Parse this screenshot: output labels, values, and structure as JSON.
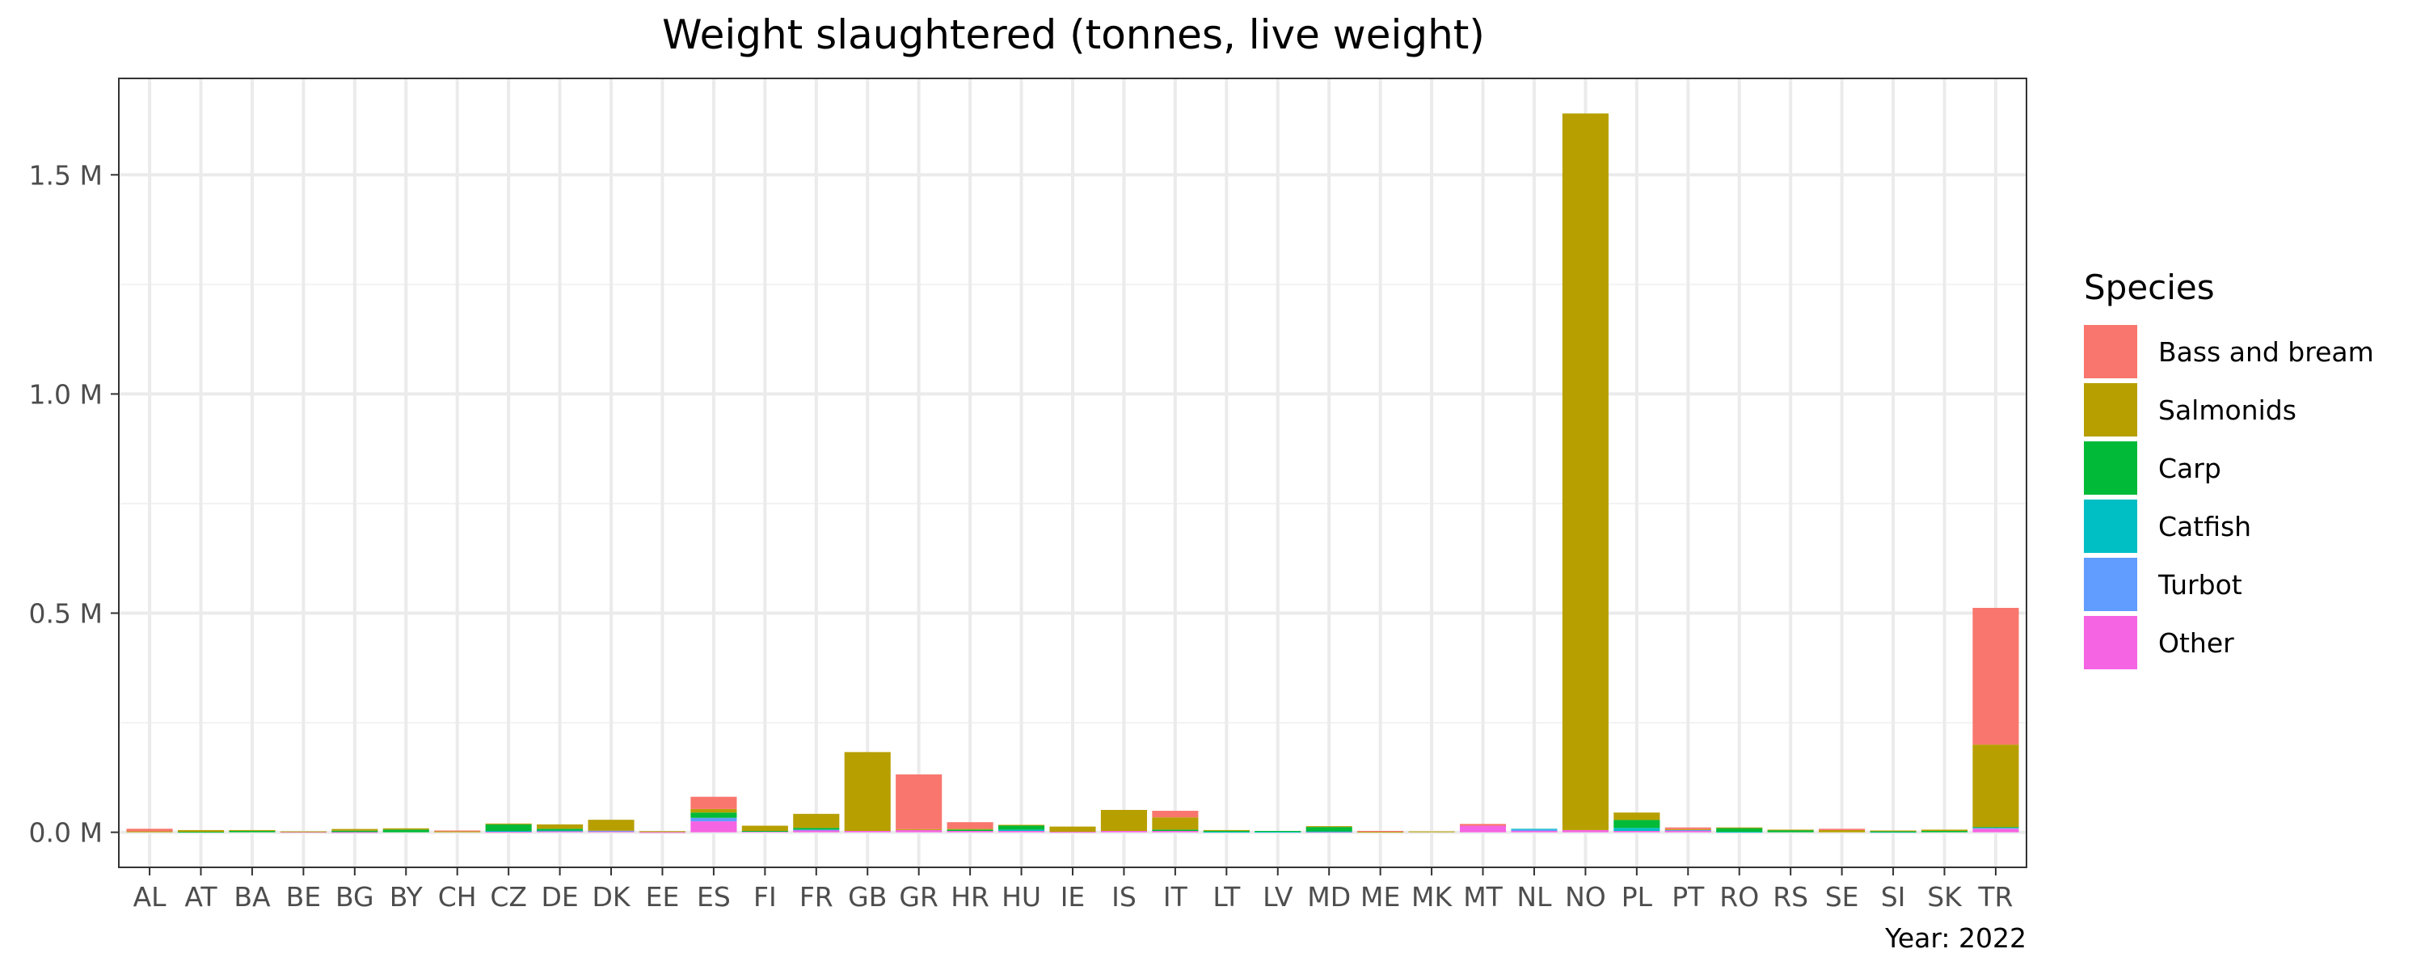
{
  "chart_data": {
    "type": "bar",
    "stacked": true,
    "title": "Weight slaughtered (tonnes, live weight)",
    "caption": "Year: 2022",
    "xlabel": "",
    "ylabel": "",
    "ylim": [
      -80000,
      1720000
    ],
    "y_ticks": [
      {
        "value": 0,
        "label": "0.0 M"
      },
      {
        "value": 500000,
        "label": "0.5 M"
      },
      {
        "value": 1000000,
        "label": "1.0 M"
      },
      {
        "value": 1500000,
        "label": "1.5 M"
      }
    ],
    "grid": true,
    "legend": {
      "title": "Species",
      "position": "right"
    },
    "categories": [
      "AL",
      "AT",
      "BA",
      "BE",
      "BG",
      "BY",
      "CH",
      "CZ",
      "DE",
      "DK",
      "EE",
      "ES",
      "FI",
      "FR",
      "GB",
      "GR",
      "HR",
      "HU",
      "IE",
      "IS",
      "IT",
      "LT",
      "LV",
      "MD",
      "ME",
      "MK",
      "MT",
      "NL",
      "NO",
      "PL",
      "PT",
      "RO",
      "RS",
      "SE",
      "SI",
      "SK",
      "TR"
    ],
    "series": [
      {
        "name": "Other",
        "color": "#F564E3",
        "values": [
          0,
          0,
          0,
          1000,
          500,
          0,
          0,
          1000,
          3000,
          3000,
          500,
          25000,
          2000,
          5000,
          3000,
          5000,
          3000,
          3000,
          1000,
          3000,
          3000,
          0,
          0,
          1000,
          0,
          0,
          15000,
          3000,
          5000,
          3000,
          3000,
          0,
          0,
          0,
          0,
          0,
          8000
        ]
      },
      {
        "name": "Turbot",
        "color": "#619CFF",
        "values": [
          0,
          0,
          0,
          0,
          0,
          0,
          0,
          0,
          0,
          500,
          0,
          8000,
          0,
          1000,
          0,
          0,
          0,
          0,
          0,
          0,
          0,
          0,
          0,
          0,
          0,
          0,
          0,
          3000,
          0,
          0,
          2000,
          0,
          0,
          0,
          0,
          0,
          2000
        ]
      },
      {
        "name": "Catfish",
        "color": "#00BFC4",
        "values": [
          0,
          0,
          0,
          0,
          0,
          0,
          0,
          2000,
          1000,
          0,
          0,
          0,
          0,
          0,
          0,
          0,
          0,
          3000,
          0,
          0,
          0,
          1000,
          1000,
          1000,
          0,
          0,
          0,
          2000,
          0,
          7000,
          0,
          1000,
          0,
          0,
          1000,
          0,
          0
        ]
      },
      {
        "name": "Carp",
        "color": "#00BA38",
        "values": [
          0,
          1000,
          3000,
          0,
          3000,
          6000,
          0,
          15000,
          4000,
          0,
          0,
          12000,
          1000,
          4000,
          0,
          0,
          3000,
          10000,
          0,
          0,
          3000,
          3000,
          2000,
          10000,
          0,
          0,
          0,
          0,
          0,
          18000,
          0,
          9000,
          5000,
          0,
          1000,
          3000,
          2000
        ]
      },
      {
        "name": "Salmonids",
        "color": "#B79F00",
        "values": [
          2000,
          4000,
          2000,
          1000,
          4000,
          3000,
          2000,
          2000,
          10000,
          25000,
          2000,
          8000,
          12000,
          32000,
          180000,
          2000,
          2000,
          1000,
          12000,
          48000,
          28000,
          1000,
          0,
          2000,
          1000,
          2000,
          0,
          0,
          1635000,
          17000,
          2000,
          1000,
          1000,
          5000,
          2000,
          3000,
          188000
        ]
      },
      {
        "name": "Bass and bream",
        "color": "#F8766D",
        "values": [
          6000,
          0,
          0,
          0,
          0,
          0,
          2000,
          0,
          0,
          0,
          0,
          28000,
          0,
          0,
          0,
          125000,
          15000,
          0,
          0,
          0,
          15000,
          0,
          0,
          0,
          2000,
          0,
          4000,
          0,
          0,
          0,
          4000,
          0,
          0,
          3000,
          0,
          0,
          312000
        ]
      }
    ]
  }
}
